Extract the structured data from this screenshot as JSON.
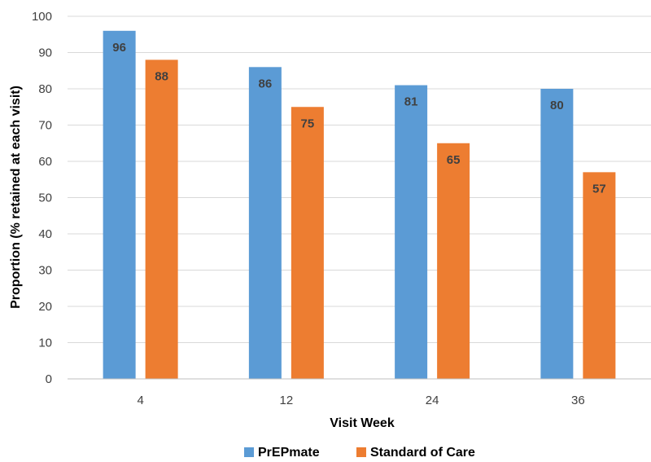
{
  "chart_data": {
    "type": "bar",
    "categories": [
      "4",
      "12",
      "24",
      "36"
    ],
    "series": [
      {
        "name": "PrEPmate",
        "values": [
          96,
          86,
          81,
          80
        ],
        "color": "#5b9bd5"
      },
      {
        "name": "Standard of Care",
        "values": [
          88,
          75,
          65,
          57
        ],
        "color": "#ed7d31"
      }
    ],
    "xlabel": "Visit Week",
    "ylabel": "Proportion (% retained at each visit)",
    "ylim": [
      0,
      100
    ],
    "yticks": [
      0,
      10,
      20,
      30,
      40,
      50,
      60,
      70,
      80,
      90,
      100
    ],
    "grid": true,
    "legend": "bottom",
    "grid_color": "#d9d9d9"
  }
}
